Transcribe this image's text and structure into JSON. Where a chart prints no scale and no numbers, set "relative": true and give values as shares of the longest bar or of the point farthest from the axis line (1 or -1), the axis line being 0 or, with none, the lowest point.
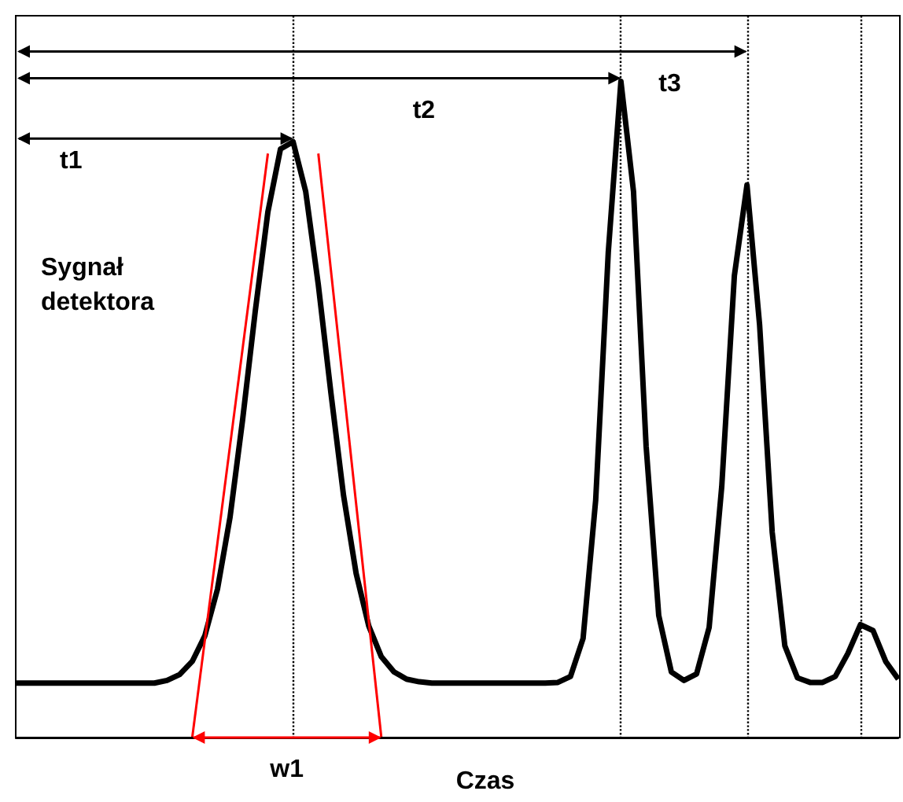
{
  "chart_data": {
    "type": "line",
    "relative": true,
    "xlabel": "Czas",
    "ylabel": "Sygnał detektora",
    "categories": [
      null,
      null,
      null,
      null,
      null,
      null,
      null,
      null,
      null,
      null,
      null,
      null,
      null,
      null,
      null,
      null,
      null,
      null,
      null,
      null,
      null,
      null,
      null,
      null,
      null,
      null,
      null,
      null,
      null,
      null,
      null,
      null,
      null,
      null,
      null,
      null,
      null,
      null,
      null,
      null,
      null,
      null,
      null,
      null,
      null,
      null,
      null,
      null,
      null,
      null,
      null,
      null,
      null,
      null,
      null,
      null,
      null,
      null,
      null,
      null,
      null,
      null,
      null,
      null,
      null,
      null,
      null,
      null,
      null,
      null,
      null
    ],
    "series": [
      {
        "color": "#000000",
        "values": [
          0.083,
          0.083,
          0.083,
          0.083,
          0.083,
          0.083,
          0.083,
          0.083,
          0.083,
          0.083,
          0.083,
          0.083,
          0.087,
          0.096,
          0.116,
          0.155,
          0.226,
          0.336,
          0.485,
          0.65,
          0.801,
          0.897,
          0.908,
          0.832,
          0.69,
          0.525,
          0.369,
          0.25,
          0.17,
          0.123,
          0.1,
          0.089,
          0.085,
          0.083,
          0.083,
          0.083,
          0.083,
          0.083,
          0.083,
          0.083,
          0.083,
          0.083,
          0.083,
          0.084,
          0.093,
          0.151,
          0.362,
          0.74,
          1,
          0.832,
          0.444,
          0.186,
          0.1,
          0.087,
          0.097,
          0.168,
          0.383,
          0.704,
          0.842,
          0.629,
          0.313,
          0.14,
          0.091,
          0.084,
          0.084,
          0.093,
          0.128,
          0.172,
          0.163,
          0.116,
          0.089
        ]
      },
      {
        "color": "#ff0000",
        "values": [
          null,
          null,
          null,
          null,
          null,
          null,
          null,
          null,
          null,
          null,
          null,
          null,
          null,
          null,
          0,
          null,
          null,
          null,
          null,
          null,
          0.89,
          null,
          null,
          null,
          null,
          null,
          null,
          null,
          null,
          null,
          null,
          null,
          null,
          null,
          null,
          null,
          null,
          null,
          null,
          null,
          null,
          null,
          null,
          null,
          null,
          null,
          null,
          null,
          null,
          null,
          null,
          null,
          null,
          null,
          null,
          null,
          null,
          null,
          null,
          null,
          null,
          null,
          null,
          null,
          null,
          null,
          null,
          null,
          null,
          null,
          null
        ]
      },
      {
        "color": "#ff0000",
        "values": [
          null,
          null,
          null,
          null,
          null,
          null,
          null,
          null,
          null,
          null,
          null,
          null,
          null,
          null,
          null,
          null,
          null,
          null,
          null,
          null,
          null,
          null,
          null,
          null,
          0.89,
          null,
          null,
          null,
          null,
          0,
          null,
          null,
          null,
          null,
          null,
          null,
          null,
          null,
          null,
          null,
          null,
          null,
          null,
          null,
          null,
          null,
          null,
          null,
          null,
          null,
          null,
          null,
          null,
          null,
          null,
          null,
          null,
          null,
          null,
          null,
          null,
          null,
          null,
          null,
          null,
          null,
          null,
          null,
          null,
          null,
          null
        ]
      }
    ],
    "annotations": [
      "t1",
      "t2",
      "t3",
      "w1"
    ],
    "grid": "x",
    "marker": "none"
  }
}
